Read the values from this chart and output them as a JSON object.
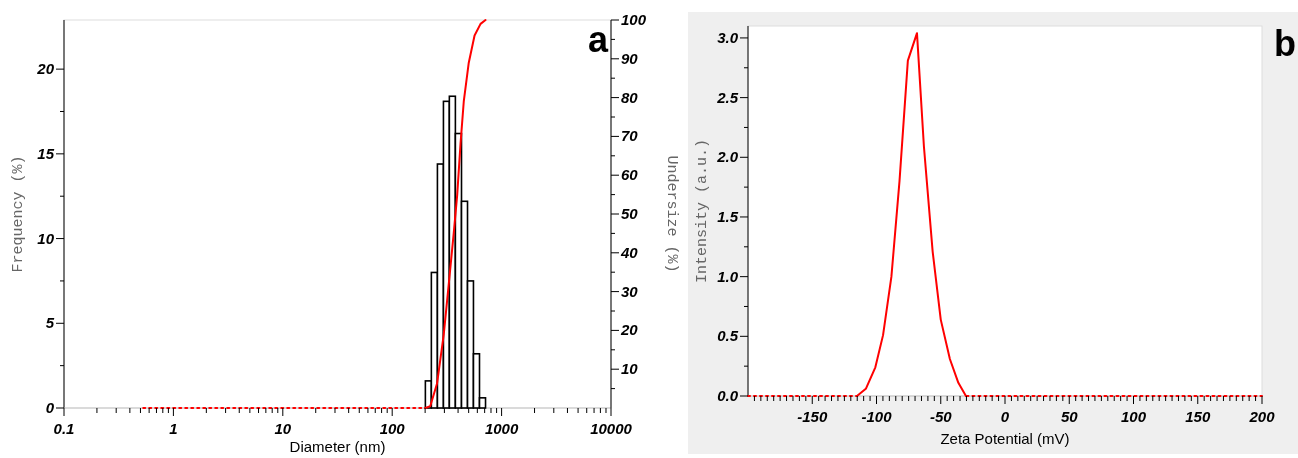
{
  "chart_data": [
    {
      "type": "histogram",
      "xlabel": "Diameter (nm)",
      "ylabel": "Frequency (%)",
      "y2label": "Undersize (%)",
      "log": "x",
      "annotations": [
        "a"
      ],
      "xlim": [
        0.1,
        10000
      ],
      "xticks": [
        0.1,
        {
          "value": 0.2,
          "label": null
        },
        {
          "value": 0.3,
          "label": null
        },
        {
          "value": 0.4,
          "label": null
        },
        {
          "value": 0.5,
          "label": null
        },
        {
          "value": 0.6,
          "label": null
        },
        {
          "value": 0.7,
          "label": null
        },
        {
          "value": 0.8,
          "label": null
        },
        {
          "value": 0.9,
          "label": null
        },
        1,
        {
          "value": 2,
          "label": null
        },
        {
          "value": 3,
          "label": null
        },
        {
          "value": 4,
          "label": null
        },
        {
          "value": 5,
          "label": null
        },
        {
          "value": 6,
          "label": null
        },
        {
          "value": 7,
          "label": null
        },
        {
          "value": 8,
          "label": null
        },
        {
          "value": 9,
          "label": null
        },
        10,
        {
          "value": 20,
          "label": null
        },
        {
          "value": 30,
          "label": null
        },
        {
          "value": 40,
          "label": null
        },
        {
          "value": 50,
          "label": null
        },
        {
          "value": 60,
          "label": null
        },
        {
          "value": 70,
          "label": null
        },
        {
          "value": 80,
          "label": null
        },
        {
          "value": 90,
          "label": null
        },
        100,
        {
          "value": 200,
          "label": null
        },
        {
          "value": 300,
          "label": null
        },
        {
          "value": 400,
          "label": null
        },
        {
          "value": 500,
          "label": null
        },
        {
          "value": 600,
          "label": null
        },
        {
          "value": 700,
          "label": null
        },
        {
          "value": 800,
          "label": null
        },
        {
          "value": 900,
          "label": null
        },
        1000,
        {
          "value": 2000,
          "label": null
        },
        {
          "value": 3000,
          "label": null
        },
        {
          "value": 4000,
          "label": null
        },
        {
          "value": 5000,
          "label": null
        },
        {
          "value": 6000,
          "label": null
        },
        {
          "value": 7000,
          "label": null
        },
        {
          "value": 8000,
          "label": null
        },
        {
          "value": 9000,
          "label": null
        },
        10000
      ],
      "ylim": [
        0,
        22.9
      ],
      "yticks": [
        0,
        {
          "value": 2.5,
          "label": null
        },
        5,
        {
          "value": 7.5,
          "label": null
        },
        10,
        {
          "value": 12.5,
          "label": null
        },
        15,
        {
          "value": 17.5,
          "label": null
        },
        20
      ],
      "y2lim": [
        0,
        100
      ],
      "y2ticks": [
        {
          "value": 5,
          "label": null
        },
        10,
        {
          "value": 15,
          "label": null
        },
        20,
        {
          "value": 25,
          "label": null
        },
        30,
        {
          "value": 35,
          "label": null
        },
        40,
        {
          "value": 45,
          "label": null
        },
        50,
        {
          "value": 55,
          "label": null
        },
        60,
        {
          "value": 65,
          "label": null
        },
        70,
        {
          "value": 75,
          "label": null
        },
        80,
        {
          "value": 85,
          "label": null
        },
        90,
        {
          "value": 95,
          "label": null
        },
        100
      ],
      "series": [
        {
          "color": "#000000",
          "bins": [
            201,
            228,
            259,
            294,
            333,
            378,
            430,
            488,
            553,
            628,
            713
          ],
          "values": [
            1.6,
            8.0,
            14.4,
            18.1,
            18.4,
            16.2,
            12.2,
            7.5,
            3.2,
            0.6
          ]
        },
        {
          "type": "line",
          "axis": "y2",
          "color": "#ff0000",
          "line_style": "dotted",
          "x": [
            0.53,
            201
          ],
          "values": [
            0,
            0
          ]
        },
        {
          "type": "line",
          "axis": "y2",
          "color": "#ff0000",
          "x": [
            201,
            223,
            257,
            296,
            329,
            365,
            393,
            421,
            451,
            501,
            566,
            642,
            713
          ],
          "values": [
            0,
            0.5,
            6.3,
            19,
            32,
            45,
            55,
            68,
            79,
            89,
            96,
            99,
            100
          ]
        }
      ]
    },
    {
      "type": "line",
      "xlabel": "Zeta Potential (mV)",
      "ylabel": "Intensity (a.u.)",
      "annotations": [
        "b"
      ],
      "xlim": [
        -200,
        200
      ],
      "xticks": [
        {
          "value": -195,
          "label": null
        },
        {
          "value": -190,
          "label": null
        },
        {
          "value": -185,
          "label": null
        },
        {
          "value": -180,
          "label": null
        },
        {
          "value": -175,
          "label": null
        },
        {
          "value": -170,
          "label": null
        },
        {
          "value": -165,
          "label": null
        },
        {
          "value": -160,
          "label": null
        },
        {
          "value": -155,
          "label": null
        },
        -150,
        {
          "value": -145,
          "label": null
        },
        {
          "value": -140,
          "label": null
        },
        {
          "value": -135,
          "label": null
        },
        {
          "value": -130,
          "label": null
        },
        {
          "value": -125,
          "label": null
        },
        {
          "value": -120,
          "label": null
        },
        {
          "value": -115,
          "label": null
        },
        {
          "value": -110,
          "label": null
        },
        {
          "value": -105,
          "label": null
        },
        -100,
        {
          "value": -95,
          "label": null
        },
        {
          "value": -90,
          "label": null
        },
        {
          "value": -85,
          "label": null
        },
        {
          "value": -80,
          "label": null
        },
        {
          "value": -75,
          "label": null
        },
        {
          "value": -70,
          "label": null
        },
        {
          "value": -65,
          "label": null
        },
        {
          "value": -60,
          "label": null
        },
        {
          "value": -55,
          "label": null
        },
        -50,
        {
          "value": -45,
          "label": null
        },
        {
          "value": -40,
          "label": null
        },
        {
          "value": -35,
          "label": null
        },
        {
          "value": -30,
          "label": null
        },
        {
          "value": -25,
          "label": null
        },
        {
          "value": -20,
          "label": null
        },
        {
          "value": -15,
          "label": null
        },
        {
          "value": -10,
          "label": null
        },
        {
          "value": -5,
          "label": null
        },
        0,
        {
          "value": 5,
          "label": null
        },
        {
          "value": 10,
          "label": null
        },
        {
          "value": 15,
          "label": null
        },
        {
          "value": 20,
          "label": null
        },
        {
          "value": 25,
          "label": null
        },
        {
          "value": 30,
          "label": null
        },
        {
          "value": 35,
          "label": null
        },
        {
          "value": 40,
          "label": null
        },
        {
          "value": 45,
          "label": null
        },
        50,
        {
          "value": 55,
          "label": null
        },
        {
          "value": 60,
          "label": null
        },
        {
          "value": 65,
          "label": null
        },
        {
          "value": 70,
          "label": null
        },
        {
          "value": 75,
          "label": null
        },
        {
          "value": 80,
          "label": null
        },
        {
          "value": 85,
          "label": null
        },
        {
          "value": 90,
          "label": null
        },
        {
          "value": 95,
          "label": null
        },
        100,
        {
          "value": 105,
          "label": null
        },
        {
          "value": 110,
          "label": null
        },
        {
          "value": 115,
          "label": null
        },
        {
          "value": 120,
          "label": null
        },
        {
          "value": 125,
          "label": null
        },
        {
          "value": 130,
          "label": null
        },
        {
          "value": 135,
          "label": null
        },
        {
          "value": 140,
          "label": null
        },
        {
          "value": 145,
          "label": null
        },
        150,
        {
          "value": 155,
          "label": null
        },
        {
          "value": 160,
          "label": null
        },
        {
          "value": 165,
          "label": null
        },
        {
          "value": 170,
          "label": null
        },
        {
          "value": 175,
          "label": null
        },
        {
          "value": 180,
          "label": null
        },
        {
          "value": 185,
          "label": null
        },
        {
          "value": 190,
          "label": null
        },
        {
          "value": 195,
          "label": null
        },
        200
      ],
      "ylim": [
        0,
        3.1
      ],
      "yticks": [
        {
          "value": 0,
          "label": "0.0"
        },
        {
          "value": 0.25,
          "label": null
        },
        {
          "value": 0.5,
          "label": "0.5"
        },
        {
          "value": 0.75,
          "label": null
        },
        {
          "value": 1,
          "label": "1.0"
        },
        {
          "value": 1.25,
          "label": null
        },
        {
          "value": 1.5,
          "label": "1.5"
        },
        {
          "value": 1.75,
          "label": null
        },
        {
          "value": 2,
          "label": "2.0"
        },
        {
          "value": 2.25,
          "label": null
        },
        {
          "value": 2.5,
          "label": "2.5"
        },
        {
          "value": 2.75,
          "label": null
        },
        {
          "value": 3,
          "label": "3.0"
        }
      ],
      "series": [
        {
          "color": "#ff0000",
          "line_style": "dotted",
          "x": [
            -200,
            -115,
            -70,
            -30,
            200
          ],
          "values": [
            0,
            0,
            null,
            0,
            0
          ]
        },
        {
          "color": "#ff0000",
          "x": [
            -115.2,
            -108.3,
            -100.9,
            -94.9,
            -88.4,
            -82.1,
            -75.6,
            -68.5,
            -63.1,
            -56.3,
            -50.0,
            -42.9,
            -36.3,
            -30.4
          ],
          "values": [
            0,
            0.06,
            0.24,
            0.51,
            1.0,
            1.8,
            2.81,
            3.04,
            2.09,
            1.21,
            0.64,
            0.31,
            0.11,
            0
          ]
        }
      ]
    }
  ]
}
